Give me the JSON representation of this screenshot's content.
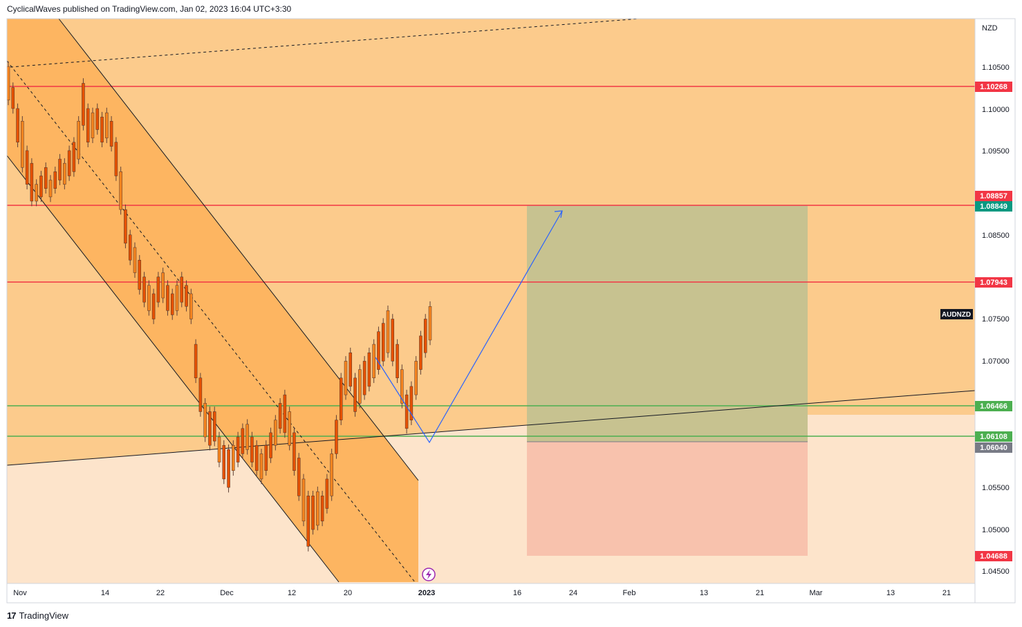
{
  "header": {
    "published_by": "CyclicalWaves published on TradingView.com, Jan 02, 2023 16:04 UTC+3:30"
  },
  "footer": {
    "logo_glyph": "17",
    "brand": "TradingView"
  },
  "colors": {
    "zone_orange": "#fccb8c",
    "channel_fill": "#fdb561",
    "zone_light": "#fde4cb",
    "target_box": "#c7c290",
    "stop_box": "#f8c2ad",
    "resistance_red": "#f23645",
    "support_green": "#4caf50",
    "projection_blue": "#2962ff",
    "candle_orange": "#f5841f",
    "axis_bg": "#ffffff"
  },
  "chart_data": {
    "type": "candlestick",
    "symbol": "AUDNZD",
    "currency_label": "NZD",
    "y_ticks": [
      "1.10500",
      "1.10000",
      "1.09500",
      "1.08500",
      "1.07500",
      "1.07000",
      "1.05500",
      "1.05000",
      "1.04500"
    ],
    "x_ticks": [
      "Nov",
      "14",
      "22",
      "Dec",
      "12",
      "20",
      "2023",
      "16",
      "24",
      "Feb",
      "13",
      "21",
      "Mar",
      "13",
      "21"
    ],
    "levels": [
      {
        "price": 1.10268,
        "label": "1.10268",
        "kind": "resistance"
      },
      {
        "price": 1.08857,
        "label": "1.08857",
        "kind": "resistance"
      },
      {
        "price": 1.07943,
        "label": "1.07943",
        "kind": "resistance"
      },
      {
        "price": 1.06466,
        "label": "1.06466",
        "kind": "support"
      },
      {
        "price": 1.06108,
        "label": "1.06108",
        "kind": "support"
      }
    ],
    "position": {
      "entry": 1.0604,
      "entry_label": "1.06040",
      "target": 1.08849,
      "target_label": "1.08849",
      "stop": 1.04688,
      "stop_label": "1.04688"
    },
    "candles_trend": [
      [
        1.105,
        1.101
      ],
      [
        1.1025,
        1.1
      ],
      [
        1.1,
        1.096
      ],
      [
        1.0985,
        1.093
      ],
      [
        1.095,
        1.091
      ],
      [
        1.0935,
        1.089
      ],
      [
        1.091,
        1.089
      ],
      [
        1.092,
        1.0895
      ],
      [
        1.093,
        1.0905
      ],
      [
        1.0915,
        1.0895
      ],
      [
        1.0925,
        1.0905
      ],
      [
        1.094,
        1.0915
      ],
      [
        1.0935,
        1.091
      ],
      [
        1.095,
        1.092
      ],
      [
        1.096,
        1.0925
      ],
      [
        1.0985,
        1.094
      ],
      [
        1.103,
        1.098
      ],
      [
        1.1,
        1.096
      ],
      [
        1.0995,
        1.0965
      ],
      [
        1.1,
        1.0975
      ],
      [
        1.099,
        1.096
      ],
      [
        1.0995,
        1.0965
      ],
      [
        1.0985,
        1.0955
      ],
      [
        1.096,
        1.092
      ],
      [
        1.0925,
        1.088
      ],
      [
        1.088,
        1.084
      ],
      [
        1.085,
        1.082
      ],
      [
        1.0835,
        1.0805
      ],
      [
        1.082,
        1.0785
      ],
      [
        1.08,
        1.077
      ],
      [
        1.079,
        1.076
      ],
      [
        1.078,
        1.075
      ],
      [
        1.08,
        1.077
      ],
      [
        1.0805,
        1.0775
      ],
      [
        1.079,
        1.076
      ],
      [
        1.078,
        1.0755
      ],
      [
        1.079,
        1.076
      ],
      [
        1.08,
        1.077
      ],
      [
        1.079,
        1.0765
      ],
      [
        1.078,
        1.075
      ],
      [
        1.072,
        1.068
      ],
      [
        1.068,
        1.064
      ],
      [
        1.065,
        1.061
      ],
      [
        1.064,
        1.06
      ],
      [
        1.064,
        1.0605
      ],
      [
        1.061,
        1.058
      ],
      [
        1.06,
        1.056
      ],
      [
        1.0595,
        1.055
      ],
      [
        1.06,
        1.057
      ],
      [
        1.061,
        1.058
      ],
      [
        1.062,
        1.059
      ],
      [
        1.0625,
        1.0595
      ],
      [
        1.061,
        1.058
      ],
      [
        1.06,
        1.057
      ],
      [
        1.059,
        1.056
      ],
      [
        1.06,
        1.057
      ],
      [
        1.0615,
        1.0585
      ],
      [
        1.063,
        1.06
      ],
      [
        1.065,
        1.062
      ],
      [
        1.066,
        1.0615
      ],
      [
        1.064,
        1.06
      ],
      [
        1.0615,
        1.057
      ],
      [
        1.0585,
        1.054
      ],
      [
        1.056,
        1.051
      ],
      [
        1.054,
        1.048
      ],
      [
        1.054,
        1.05
      ],
      [
        1.0545,
        1.0505
      ],
      [
        1.054,
        1.051
      ],
      [
        1.056,
        1.0525
      ],
      [
        1.059,
        1.054
      ],
      [
        1.063,
        1.059
      ],
      [
        1.068,
        1.063
      ],
      [
        1.07,
        1.066
      ],
      [
        1.071,
        1.067
      ],
      [
        1.068,
        1.064
      ],
      [
        1.069,
        1.065
      ],
      [
        1.07,
        1.066
      ],
      [
        1.071,
        1.067
      ],
      [
        1.072,
        1.068
      ],
      [
        1.0735,
        1.069
      ],
      [
        1.0745,
        1.07
      ],
      [
        1.076,
        1.071
      ],
      [
        1.075,
        1.07
      ],
      [
        1.072,
        1.068
      ],
      [
        1.069,
        1.065
      ],
      [
        1.066,
        1.062
      ],
      [
        1.067,
        1.063
      ],
      [
        1.07,
        1.066
      ],
      [
        1.073,
        1.069
      ],
      [
        1.075,
        1.071
      ],
      [
        1.0765,
        1.0725
      ]
    ]
  }
}
